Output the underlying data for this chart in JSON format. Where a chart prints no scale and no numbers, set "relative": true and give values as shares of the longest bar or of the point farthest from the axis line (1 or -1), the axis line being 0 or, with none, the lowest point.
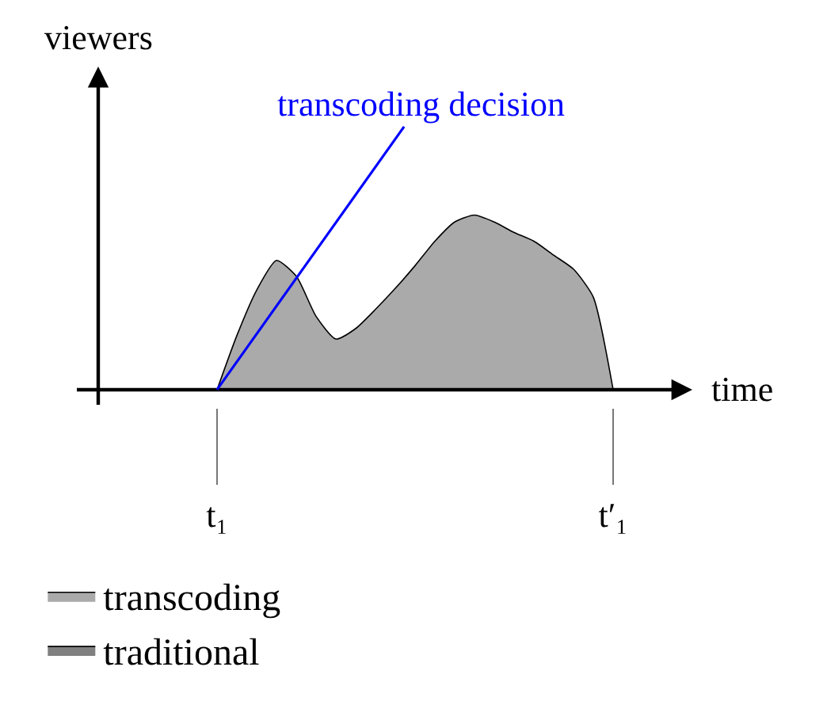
{
  "chart_data": {
    "type": "area",
    "relative": true,
    "xlabel": "time",
    "ylabel": "viewers",
    "categories": [
      "t₁",
      null,
      null,
      null,
      null,
      null,
      null,
      null,
      null,
      null,
      null,
      null,
      null,
      null,
      null,
      null,
      null,
      null,
      null,
      null,
      "t′₁"
    ],
    "grid": false,
    "legend": "bottom",
    "marker": "none",
    "annotations": [
      {
        "text": "transcoding decision",
        "x": "t₁",
        "y": 0
      }
    ],
    "series": [
      {
        "name": "transcoding",
        "color": "#aaaaaa",
        "values": [
          0,
          0.31,
          0.57,
          0.74,
          0.65,
          0.42,
          0.29,
          0.35,
          0.46,
          0.58,
          0.71,
          0.85,
          0.96,
          1,
          0.96,
          0.9,
          0.85,
          0.77,
          0.69,
          0.53,
          0
        ]
      },
      {
        "name": "traditional",
        "color": "#808080",
        "values": [
          null,
          null,
          null,
          null,
          null,
          null,
          null,
          null,
          null,
          null,
          null,
          null,
          null,
          null,
          null,
          null,
          null,
          null,
          null,
          null,
          null
        ]
      }
    ]
  }
}
